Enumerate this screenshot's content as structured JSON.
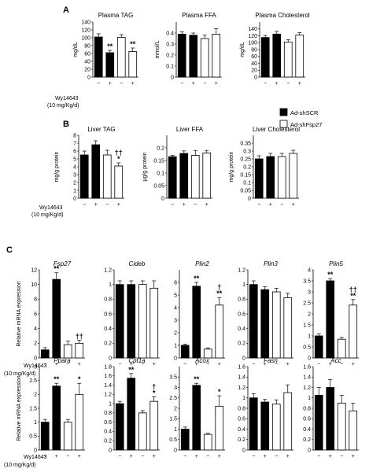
{
  "panels": [
    "A",
    "B",
    "C"
  ],
  "treatment_label": "Wy14643",
  "treatment_dose": "(10 mg/Kg/d)",
  "treatment_ticks": [
    "−",
    "+",
    "−",
    "+"
  ],
  "legend": [
    {
      "label": "Ad-shSCR",
      "color": "#000000"
    },
    {
      "label": "Ad-shFsp27",
      "color": "#ffffff"
    }
  ],
  "chart_data": [
    {
      "type": "bar",
      "title": "Plasma TAG",
      "ylabel": "mg/dL",
      "ylim": [
        0,
        140
      ],
      "yticks": [
        0,
        20,
        40,
        60,
        80,
        100,
        120,
        140
      ],
      "values": [
        102,
        62,
        101,
        65
      ],
      "errors": [
        8,
        6,
        7,
        9
      ],
      "marks": [
        "",
        "**",
        "",
        "**"
      ]
    },
    {
      "type": "bar",
      "title": "Plasma FFA",
      "ylabel": "mmol/L",
      "ylim": [
        0,
        0.5
      ],
      "yticks": [
        0,
        0.1,
        0.2,
        0.3,
        0.4
      ],
      "values": [
        0.39,
        0.38,
        0.35,
        0.39
      ],
      "errors": [
        0.02,
        0.02,
        0.03,
        0.05
      ],
      "marks": [
        "",
        "",
        "",
        ""
      ]
    },
    {
      "type": "bar",
      "title": "Plasma Cholesterol",
      "ylabel": "mg/dL",
      "ylim": [
        0,
        160
      ],
      "yticks": [
        0,
        20,
        40,
        60,
        80,
        100,
        120,
        140
      ],
      "values": [
        115,
        125,
        102,
        122
      ],
      "errors": [
        6,
        8,
        7,
        7
      ],
      "marks": [
        "",
        "",
        "",
        ""
      ]
    },
    {
      "type": "bar",
      "title": "Liver TAG",
      "ylabel": "mg/g protein",
      "ylim": [
        0,
        8
      ],
      "yticks": [
        0,
        1,
        2,
        3,
        4,
        5,
        6,
        7,
        8
      ],
      "values": [
        5.5,
        6.8,
        5.5,
        4.1
      ],
      "errors": [
        0.5,
        0.5,
        0.6,
        0.4
      ],
      "marks": [
        "",
        "",
        "",
        "††\n*"
      ]
    },
    {
      "type": "bar",
      "title": "Liver FFA",
      "ylabel": "μg/g protein",
      "ylim": [
        0,
        0.25
      ],
      "yticks": [
        0,
        0.05,
        0.1,
        0.15,
        0.2
      ],
      "values": [
        0.165,
        0.178,
        0.17,
        0.18
      ],
      "errors": [
        0.005,
        0.01,
        0.02,
        0.01
      ],
      "marks": [
        "",
        "",
        "",
        ""
      ]
    },
    {
      "type": "bar",
      "title": "Liver Cholesterol",
      "ylabel": "mg/g protein",
      "ylim": [
        0,
        0.4
      ],
      "yticks": [
        0,
        0.05,
        0.1,
        0.15,
        0.2,
        0.25,
        0.3,
        0.35
      ],
      "values": [
        0.25,
        0.265,
        0.265,
        0.285
      ],
      "errors": [
        0.02,
        0.02,
        0.02,
        0.02
      ],
      "marks": [
        "",
        "",
        "",
        ""
      ]
    },
    {
      "type": "bar",
      "title": "Fsp27",
      "ylabel": "Relative mRNA expression",
      "ylim": [
        0,
        12
      ],
      "yticks": [
        0,
        2,
        4,
        6,
        8,
        10,
        12
      ],
      "values": [
        1.1,
        10.7,
        1.8,
        2.0
      ],
      "errors": [
        0.3,
        0.9,
        0.5,
        0.4
      ],
      "marks": [
        "",
        "**",
        "",
        "††"
      ]
    },
    {
      "type": "bar",
      "title": "Cideb",
      "ylabel": "",
      "ylim": [
        0,
        1.2
      ],
      "yticks": [
        0,
        0.2,
        0.4,
        0.6,
        0.8,
        1,
        1.2
      ],
      "values": [
        1.0,
        1.0,
        1.0,
        0.95
      ],
      "errors": [
        0.05,
        0.05,
        0.05,
        0.1
      ],
      "marks": [
        "",
        "",
        "",
        ""
      ]
    },
    {
      "type": "bar",
      "title": "Plin2",
      "ylabel": "",
      "ylim": [
        0,
        7
      ],
      "yticks": [
        0,
        1,
        2,
        3,
        4,
        5,
        6
      ],
      "values": [
        1.0,
        5.7,
        0.7,
        4.2
      ],
      "errors": [
        0.1,
        0.3,
        0.1,
        0.6
      ],
      "marks": [
        "",
        "**",
        "",
        "†\n**"
      ]
    },
    {
      "type": "bar",
      "title": "Plin3",
      "ylabel": "",
      "ylim": [
        0,
        1.2
      ],
      "yticks": [
        0,
        0.2,
        0.4,
        0.6,
        0.8,
        1,
        1.2
      ],
      "values": [
        1.0,
        0.93,
        0.9,
        0.82
      ],
      "errors": [
        0.05,
        0.04,
        0.05,
        0.06
      ],
      "marks": [
        "",
        "",
        "",
        ""
      ]
    },
    {
      "type": "bar",
      "title": "Plin5",
      "ylabel": "",
      "ylim": [
        0,
        4
      ],
      "yticks": [
        0,
        0.5,
        1,
        1.5,
        2,
        2.5,
        3,
        3.5,
        4
      ],
      "values": [
        1.0,
        3.5,
        0.85,
        2.4
      ],
      "errors": [
        0.1,
        0.1,
        0.08,
        0.25
      ],
      "marks": [
        "",
        "**",
        "",
        "††\n**"
      ]
    },
    {
      "type": "bar",
      "title": "Ppara",
      "ylabel": "Relative mRNA expression",
      "ylim": [
        0,
        3
      ],
      "yticks": [
        0,
        0.5,
        1,
        1.5,
        2,
        2.5,
        3
      ],
      "values": [
        1.0,
        2.3,
        1.0,
        2.0
      ],
      "errors": [
        0.1,
        0.1,
        0.1,
        0.4
      ],
      "marks": [
        "",
        "**",
        "",
        "*"
      ]
    },
    {
      "type": "bar",
      "title": "Cpt1a",
      "ylabel": "",
      "ylim": [
        0,
        1.8
      ],
      "yticks": [
        0,
        0.2,
        0.4,
        0.6,
        0.8,
        1,
        1.2,
        1.4,
        1.6,
        1.8
      ],
      "values": [
        1.0,
        1.55,
        0.8,
        1.05
      ],
      "errors": [
        0.05,
        0.1,
        0.05,
        0.1
      ],
      "marks": [
        "",
        "**",
        "",
        "†\n*"
      ]
    },
    {
      "type": "bar",
      "title": "Acox",
      "ylabel": "",
      "ylim": [
        0,
        4
      ],
      "yticks": [
        0,
        0.5,
        1,
        1.5,
        2,
        2.5,
        3,
        3.5
      ],
      "values": [
        1.0,
        3.1,
        0.75,
        2.1
      ],
      "errors": [
        0.1,
        0.1,
        0.05,
        0.5
      ],
      "marks": [
        "",
        "**",
        "",
        "*"
      ]
    },
    {
      "type": "bar",
      "title": "Fasn",
      "ylabel": "",
      "ylim": [
        0,
        1.6
      ],
      "yticks": [
        0,
        0.2,
        0.4,
        0.6,
        0.8,
        1,
        1.2,
        1.4,
        1.6
      ],
      "values": [
        1.0,
        0.92,
        0.88,
        1.1
      ],
      "errors": [
        0.08,
        0.05,
        0.08,
        0.15
      ],
      "marks": [
        "",
        "",
        "",
        ""
      ]
    },
    {
      "type": "bar",
      "title": "Acc",
      "ylabel": "",
      "ylim": [
        0,
        1.6
      ],
      "yticks": [
        0,
        0.2,
        0.4,
        0.6,
        0.8,
        1,
        1.2,
        1.4,
        1.6
      ],
      "values": [
        1.05,
        1.2,
        0.9,
        0.75
      ],
      "errors": [
        0.15,
        0.15,
        0.15,
        0.15
      ],
      "marks": [
        "",
        "",
        "",
        ""
      ]
    }
  ]
}
